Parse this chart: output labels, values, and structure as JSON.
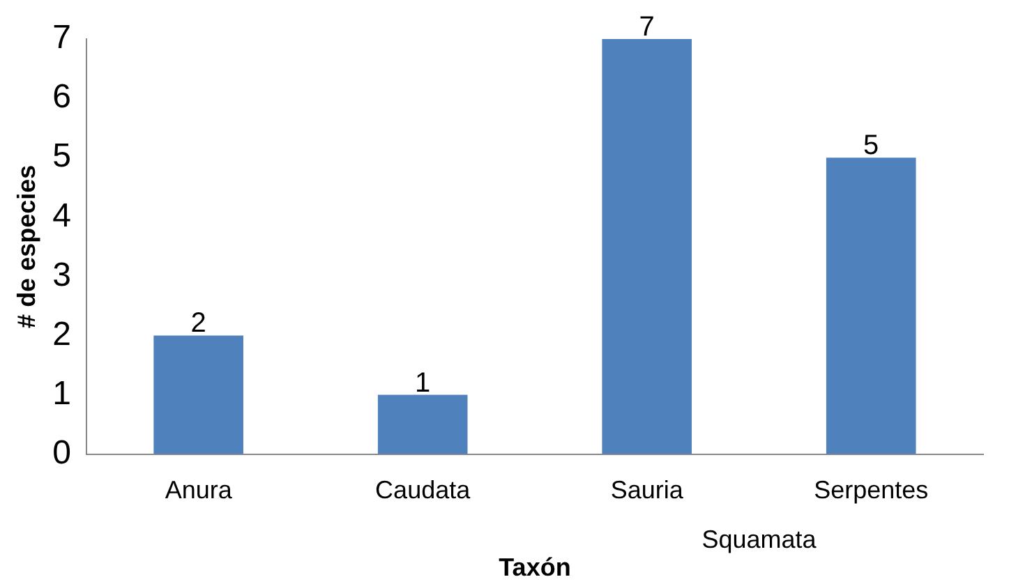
{
  "chart_data": {
    "type": "bar",
    "xlabel": "Taxón",
    "ylabel": "# de especies",
    "categories": [
      "Anura",
      "Caudata",
      "Sauria",
      "Serpentes"
    ],
    "values": [
      2,
      1,
      7,
      5
    ],
    "color": "#4f81bd",
    "ylim": [
      0,
      7
    ],
    "yticks": [
      0,
      1,
      2,
      3,
      4,
      5,
      6,
      7
    ],
    "grid": false,
    "data_labels": true,
    "legend": false,
    "annotations": [
      "Squamata"
    ]
  }
}
